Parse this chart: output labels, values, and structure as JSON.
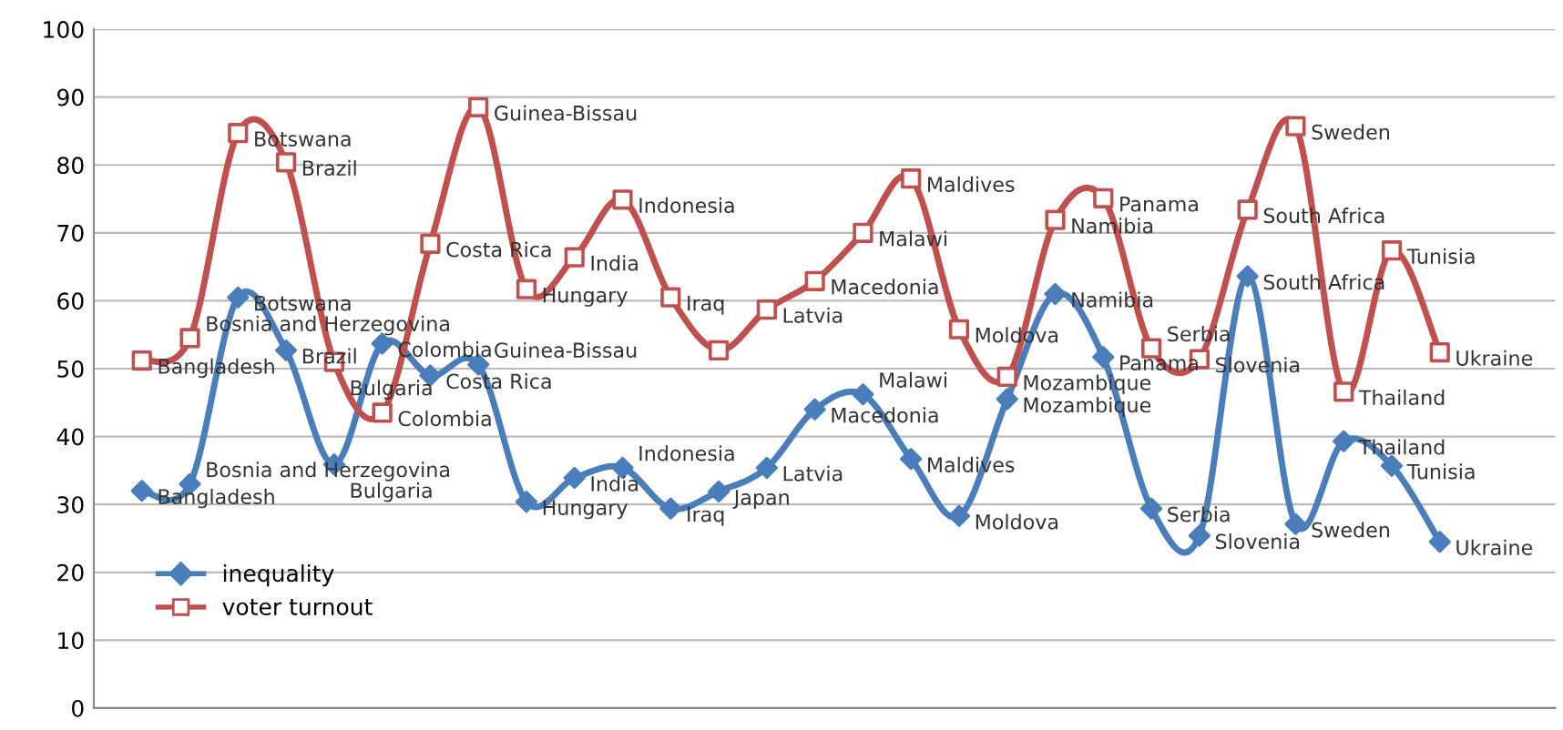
{
  "chart_data": {
    "type": "line",
    "categories": [
      null,
      null,
      null,
      null,
      null,
      null,
      null,
      null,
      null,
      null,
      null,
      null,
      null,
      null,
      null,
      null,
      null,
      null,
      null,
      null,
      null,
      null,
      null,
      null,
      null,
      null,
      null,
      null
    ],
    "series": [
      {
        "name": "inequality",
        "color": "#4a7ebb",
        "marker": "diamond",
        "values": [
          32,
          33,
          60.5,
          52.7,
          35.9,
          53.7,
          49,
          50.6,
          30.4,
          33.9,
          35.4,
          29.4,
          31.9,
          35.4,
          44,
          46.2,
          36.7,
          28.3,
          45.5,
          61,
          51.7,
          29.4,
          25.4,
          63.6,
          27.1,
          39.3,
          35.7,
          24.5
        ],
        "value_labels": [
          "Bangladesh",
          "Bosnia and Herzegovina",
          "Botswana",
          "Brazil",
          "Bulgaria",
          "Colombia",
          "Costa Rica",
          "Guinea-Bissau",
          "Hungary",
          "India",
          "Indonesia",
          "Iraq",
          "Japan",
          "Latvia",
          "Macedonia",
          "Malawi",
          "Maldives",
          "Moldova",
          "Mozambique",
          "Namibia",
          "Panama",
          "Serbia",
          "Slovenia",
          "South Africa",
          "Sweden",
          "Thailand",
          "Tunisia",
          "Ukraine"
        ]
      },
      {
        "name": "voter turnout",
        "color": "#c0504d",
        "marker": "square",
        "values": [
          51.2,
          54.5,
          84.7,
          80.4,
          51,
          43.5,
          68.4,
          88.5,
          61.7,
          66.4,
          74.9,
          60.5,
          52.7,
          58.7,
          62.9,
          70,
          78,
          55.8,
          48.8,
          71.9,
          75.1,
          53,
          51.4,
          73.4,
          85.7,
          46.6,
          67.4,
          52.4
        ],
        "value_labels": [
          "Bangladesh",
          "Bosnia and Herzegovina",
          "Botswana",
          "Brazil",
          "Bulgaria",
          "Colombia",
          "Costa Rica",
          "Guinea-Bissau",
          "Hungary",
          "India",
          "Indonesia",
          "Iraq",
          null,
          "Latvia",
          "Macedonia",
          "Malawi",
          "Maldives",
          "Moldova",
          "Mozambique",
          "Namibia",
          "Panama",
          "Serbia",
          "Slovenia",
          "South Africa",
          "Sweden",
          "Thailand",
          "Tunisia",
          "Ukraine"
        ]
      }
    ],
    "ylim": [
      0,
      100
    ],
    "yticks": [
      0,
      10,
      20,
      30,
      40,
      50,
      60,
      70,
      80,
      90,
      100
    ],
    "grid": "y",
    "legend": "bottom left",
    "tick_labels": "y",
    "line_style": "solid"
  }
}
